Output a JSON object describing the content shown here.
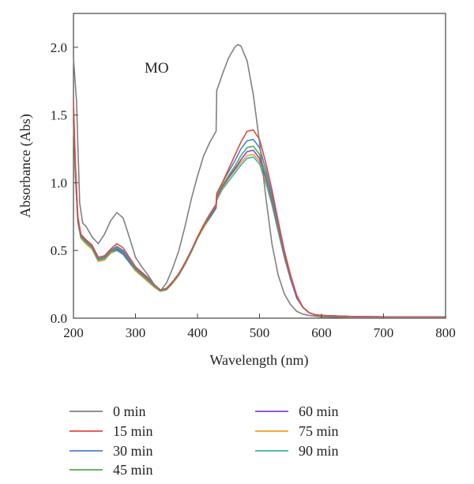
{
  "chart_data": {
    "type": "line",
    "title": "",
    "annotation": "MO",
    "xlabel": "Wavelength (nm)",
    "ylabel": "Absorbance (Abs)",
    "xlim": [
      200,
      800
    ],
    "ylim": [
      0,
      2.25
    ],
    "xticks": [
      200,
      300,
      400,
      500,
      600,
      700,
      800
    ],
    "yticks": [
      0.0,
      0.5,
      1.0,
      1.5,
      2.0
    ],
    "xtick_labels": [
      "200",
      "300",
      "400",
      "500",
      "600",
      "700",
      "800"
    ],
    "ytick_labels": [
      "0.0",
      "0.5",
      "1.0",
      "1.5",
      "2.0"
    ],
    "grid": false,
    "legend_position": "bottom",
    "series": [
      {
        "name": "0 min",
        "color": "#808080",
        "x": [
          200,
          205,
          210,
          215,
          220,
          230,
          240,
          250,
          260,
          270,
          280,
          290,
          300,
          310,
          320,
          330,
          340,
          350,
          360,
          370,
          380,
          390,
          400,
          410,
          420,
          430,
          431,
          440,
          450,
          460,
          465,
          470,
          480,
          490,
          500,
          510,
          520,
          530,
          540,
          550,
          560,
          570,
          580,
          600,
          650,
          700,
          750,
          800
        ],
        "y": [
          1.92,
          1.6,
          0.85,
          0.7,
          0.68,
          0.6,
          0.55,
          0.62,
          0.72,
          0.78,
          0.74,
          0.6,
          0.45,
          0.38,
          0.32,
          0.25,
          0.2,
          0.26,
          0.37,
          0.5,
          0.68,
          0.88,
          1.05,
          1.2,
          1.3,
          1.38,
          1.68,
          1.8,
          1.92,
          2.0,
          2.02,
          2.01,
          1.9,
          1.65,
          1.3,
          0.9,
          0.55,
          0.32,
          0.18,
          0.1,
          0.05,
          0.03,
          0.02,
          0.01,
          0.005,
          0.005,
          0.005,
          0.005
        ]
      },
      {
        "name": "15 min",
        "color": "#e04a3f",
        "x": [
          200,
          203,
          207,
          212,
          220,
          230,
          240,
          250,
          260,
          270,
          280,
          290,
          300,
          310,
          320,
          330,
          340,
          350,
          360,
          370,
          380,
          390,
          400,
          410,
          420,
          430,
          431,
          440,
          450,
          460,
          470,
          480,
          490,
          500,
          510,
          520,
          530,
          540,
          550,
          560,
          570,
          580,
          590,
          600,
          650,
          700,
          750,
          800
        ],
        "y": [
          1.6,
          1.15,
          0.75,
          0.62,
          0.58,
          0.54,
          0.45,
          0.46,
          0.51,
          0.55,
          0.52,
          0.45,
          0.38,
          0.34,
          0.3,
          0.25,
          0.21,
          0.22,
          0.27,
          0.33,
          0.41,
          0.5,
          0.6,
          0.69,
          0.77,
          0.84,
          0.92,
          1.0,
          1.1,
          1.2,
          1.3,
          1.38,
          1.39,
          1.32,
          1.15,
          0.95,
          0.72,
          0.5,
          0.32,
          0.17,
          0.08,
          0.04,
          0.025,
          0.02,
          0.012,
          0.01,
          0.01,
          0.01
        ]
      },
      {
        "name": "30 min",
        "color": "#4a7fd4",
        "x": [
          200,
          203,
          207,
          212,
          220,
          230,
          240,
          250,
          260,
          270,
          280,
          290,
          300,
          310,
          320,
          330,
          340,
          350,
          360,
          370,
          380,
          390,
          400,
          410,
          420,
          430,
          431,
          440,
          450,
          460,
          470,
          480,
          490,
          500,
          510,
          520,
          530,
          540,
          550,
          560,
          570,
          580,
          590,
          600,
          650,
          700,
          750,
          800
        ],
        "y": [
          1.55,
          1.12,
          0.74,
          0.61,
          0.57,
          0.53,
          0.44,
          0.45,
          0.5,
          0.53,
          0.5,
          0.44,
          0.37,
          0.33,
          0.29,
          0.24,
          0.21,
          0.22,
          0.27,
          0.33,
          0.41,
          0.5,
          0.6,
          0.69,
          0.77,
          0.84,
          0.92,
          1.0,
          1.08,
          1.16,
          1.25,
          1.31,
          1.32,
          1.26,
          1.1,
          0.91,
          0.69,
          0.48,
          0.31,
          0.16,
          0.08,
          0.04,
          0.025,
          0.02,
          0.012,
          0.01,
          0.01,
          0.01
        ]
      },
      {
        "name": "45 min",
        "color": "#4caf50",
        "x": [
          200,
          203,
          207,
          212,
          220,
          230,
          240,
          250,
          260,
          270,
          280,
          290,
          300,
          310,
          320,
          330,
          340,
          350,
          360,
          370,
          380,
          390,
          400,
          410,
          420,
          430,
          431,
          440,
          450,
          460,
          470,
          480,
          490,
          500,
          510,
          520,
          530,
          540,
          550,
          560,
          570,
          580,
          590,
          600,
          650,
          700,
          750,
          800
        ],
        "y": [
          1.5,
          1.1,
          0.73,
          0.6,
          0.56,
          0.52,
          0.43,
          0.44,
          0.49,
          0.52,
          0.49,
          0.43,
          0.36,
          0.32,
          0.28,
          0.24,
          0.2,
          0.21,
          0.26,
          0.32,
          0.4,
          0.49,
          0.59,
          0.68,
          0.76,
          0.83,
          0.9,
          0.98,
          1.05,
          1.12,
          1.2,
          1.26,
          1.27,
          1.21,
          1.06,
          0.88,
          0.67,
          0.47,
          0.3,
          0.16,
          0.08,
          0.04,
          0.025,
          0.02,
          0.012,
          0.01,
          0.01,
          0.01
        ]
      },
      {
        "name": "60 min",
        "color": "#8a3fc7",
        "x": [
          200,
          203,
          207,
          212,
          220,
          230,
          240,
          250,
          260,
          270,
          280,
          290,
          300,
          310,
          320,
          330,
          340,
          350,
          360,
          370,
          380,
          390,
          400,
          410,
          420,
          430,
          431,
          440,
          450,
          460,
          470,
          480,
          490,
          500,
          510,
          520,
          530,
          540,
          550,
          560,
          570,
          580,
          590,
          600,
          650,
          700,
          750,
          800
        ],
        "y": [
          1.48,
          1.08,
          0.72,
          0.6,
          0.56,
          0.52,
          0.43,
          0.44,
          0.49,
          0.51,
          0.48,
          0.42,
          0.36,
          0.32,
          0.28,
          0.24,
          0.2,
          0.21,
          0.26,
          0.32,
          0.4,
          0.49,
          0.59,
          0.68,
          0.75,
          0.82,
          0.89,
          0.97,
          1.04,
          1.1,
          1.17,
          1.23,
          1.24,
          1.18,
          1.04,
          0.86,
          0.66,
          0.46,
          0.29,
          0.15,
          0.08,
          0.04,
          0.025,
          0.02,
          0.012,
          0.01,
          0.01,
          0.01
        ]
      },
      {
        "name": "75 min",
        "color": "#f0a020",
        "x": [
          200,
          203,
          207,
          212,
          220,
          230,
          240,
          250,
          260,
          270,
          280,
          290,
          300,
          310,
          320,
          330,
          340,
          350,
          360,
          370,
          380,
          390,
          400,
          410,
          420,
          430,
          431,
          440,
          450,
          460,
          470,
          480,
          490,
          500,
          510,
          520,
          530,
          540,
          550,
          560,
          570,
          580,
          590,
          600,
          650,
          700,
          750,
          800
        ],
        "y": [
          1.46,
          1.07,
          0.72,
          0.59,
          0.55,
          0.51,
          0.42,
          0.43,
          0.48,
          0.51,
          0.48,
          0.42,
          0.35,
          0.31,
          0.27,
          0.23,
          0.2,
          0.21,
          0.26,
          0.32,
          0.4,
          0.49,
          0.59,
          0.67,
          0.75,
          0.82,
          0.88,
          0.96,
          1.03,
          1.09,
          1.15,
          1.2,
          1.21,
          1.16,
          1.02,
          0.85,
          0.65,
          0.45,
          0.29,
          0.15,
          0.08,
          0.04,
          0.025,
          0.02,
          0.012,
          0.01,
          0.01,
          0.01
        ]
      },
      {
        "name": "90 min",
        "color": "#3ab0b8",
        "x": [
          200,
          203,
          207,
          212,
          220,
          230,
          240,
          250,
          260,
          270,
          280,
          290,
          300,
          310,
          320,
          330,
          340,
          350,
          360,
          370,
          380,
          390,
          400,
          410,
          420,
          430,
          431,
          440,
          450,
          460,
          470,
          480,
          490,
          500,
          510,
          520,
          530,
          540,
          550,
          560,
          570,
          580,
          590,
          600,
          650,
          700,
          750,
          800
        ],
        "y": [
          1.45,
          1.06,
          0.71,
          0.59,
          0.55,
          0.51,
          0.42,
          0.43,
          0.48,
          0.5,
          0.47,
          0.41,
          0.35,
          0.31,
          0.27,
          0.23,
          0.2,
          0.21,
          0.26,
          0.32,
          0.4,
          0.49,
          0.59,
          0.67,
          0.74,
          0.81,
          0.87,
          0.95,
          1.01,
          1.07,
          1.13,
          1.18,
          1.19,
          1.14,
          1.0,
          0.84,
          0.64,
          0.45,
          0.29,
          0.15,
          0.08,
          0.04,
          0.025,
          0.02,
          0.012,
          0.01,
          0.01,
          0.01
        ]
      }
    ]
  }
}
